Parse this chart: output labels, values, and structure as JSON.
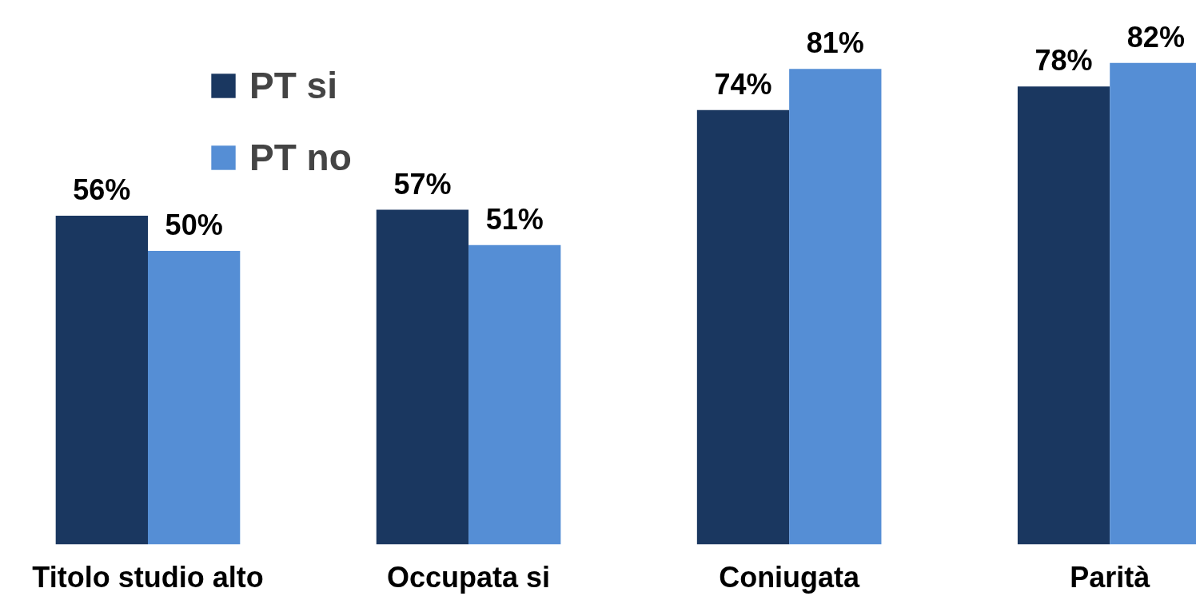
{
  "chart_data": {
    "type": "bar",
    "categories": [
      "Titolo studio alto",
      "Occupata si",
      "Coniugata",
      "Parità"
    ],
    "series": [
      {
        "name": "PT si",
        "color": "#1a3760",
        "values": [
          56,
          57,
          74,
          78
        ],
        "value_labels": [
          "56%",
          "57%",
          "74%",
          "78%"
        ]
      },
      {
        "name": "PT no",
        "color": "#558ed5",
        "values": [
          50,
          51,
          81,
          82
        ],
        "value_labels": [
          "50%",
          "51%",
          "81%",
          "82%"
        ]
      }
    ],
    "legend": "top left",
    "grid": false
  }
}
